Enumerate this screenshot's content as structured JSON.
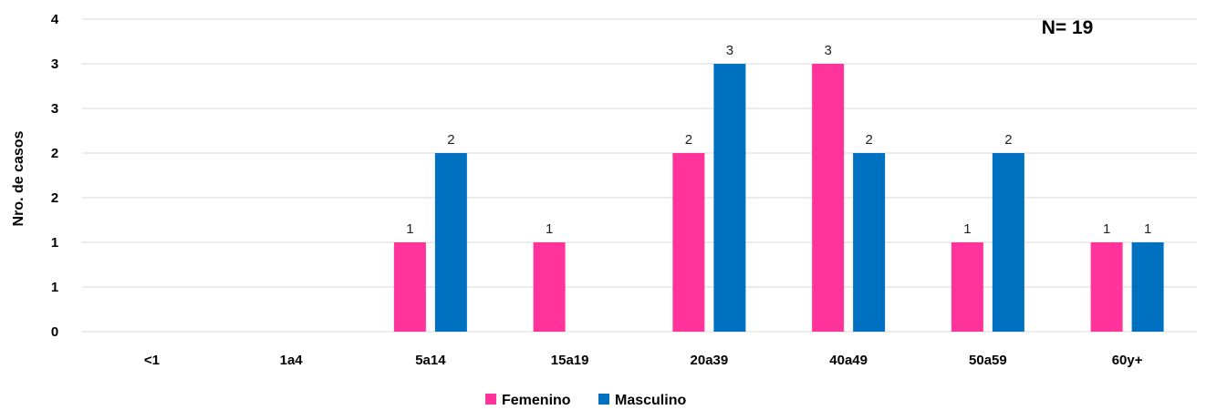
{
  "chart_data": {
    "type": "bar",
    "title": "",
    "ylabel": "Nro. de casos",
    "xlabel": "",
    "annotation": "N= 19",
    "categories": [
      "<1",
      "1a4",
      "5a14",
      "15a19",
      "20a39",
      "40a49",
      "50a59",
      "60y+"
    ],
    "ytick_labels": [
      "0",
      "1",
      "1",
      "2",
      "2",
      "3",
      "3",
      "4"
    ],
    "ylim": [
      0,
      3.5
    ],
    "grid": true,
    "legend_position": "bottom",
    "series": [
      {
        "name": "Femenino",
        "color": "#FF3399",
        "values": [
          null,
          null,
          1,
          1,
          2,
          3,
          1,
          1
        ],
        "labels": [
          "",
          "",
          "1",
          "1",
          "2",
          "3",
          "1",
          "1"
        ]
      },
      {
        "name": "Masculino",
        "color": "#0070C0",
        "values": [
          null,
          null,
          2,
          null,
          3,
          2,
          2,
          1
        ],
        "labels": [
          "",
          "",
          "2",
          "",
          "3",
          "2",
          "2",
          "1"
        ]
      }
    ]
  }
}
